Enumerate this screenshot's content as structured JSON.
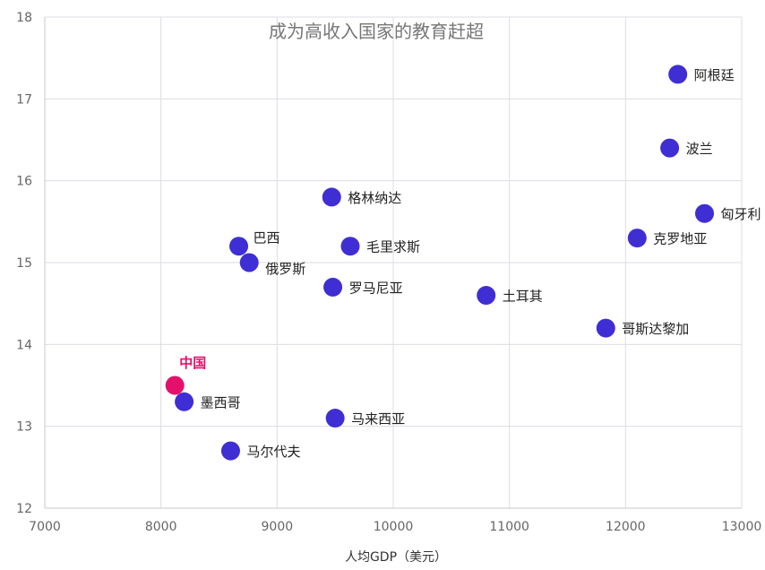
{
  "chart_data": {
    "type": "scatter",
    "title": "成为高收入国家的教育赶超",
    "xlabel": "人均GDP（美元）",
    "ylabel": "",
    "xlim": [
      7000,
      13000
    ],
    "ylim": [
      12,
      18
    ],
    "xticks": [
      "7000",
      "8000",
      "9000",
      "10000",
      "11000",
      "12000",
      "13000"
    ],
    "yticks": [
      "12",
      "13",
      "14",
      "15",
      "16",
      "17",
      "18"
    ],
    "grid": true,
    "colors": {
      "default": "#3f2ed4",
      "highlight": "#e5106b"
    },
    "points": [
      {
        "name": "阿根廷",
        "x": 12450,
        "y": 17.3
      },
      {
        "name": "波兰",
        "x": 12380,
        "y": 16.4
      },
      {
        "name": "匈牙利",
        "x": 12680,
        "y": 15.6
      },
      {
        "name": "克罗地亚",
        "x": 12100,
        "y": 15.3
      },
      {
        "name": "格林纳达",
        "x": 9470,
        "y": 15.8
      },
      {
        "name": "巴西",
        "x": 8670,
        "y": 15.2
      },
      {
        "name": "毛里求斯",
        "x": 9630,
        "y": 15.2
      },
      {
        "name": "俄罗斯",
        "x": 8760,
        "y": 15.0
      },
      {
        "name": "罗马尼亚",
        "x": 9480,
        "y": 14.7
      },
      {
        "name": "土耳其",
        "x": 10800,
        "y": 14.6
      },
      {
        "name": "哥斯达黎加",
        "x": 11830,
        "y": 14.2
      },
      {
        "name": "中国",
        "x": 8120,
        "y": 13.5,
        "highlight": true
      },
      {
        "name": "墨西哥",
        "x": 8200,
        "y": 13.3
      },
      {
        "name": "马来西亚",
        "x": 9500,
        "y": 13.1
      },
      {
        "name": "马尔代夫",
        "x": 8600,
        "y": 12.7
      }
    ]
  }
}
